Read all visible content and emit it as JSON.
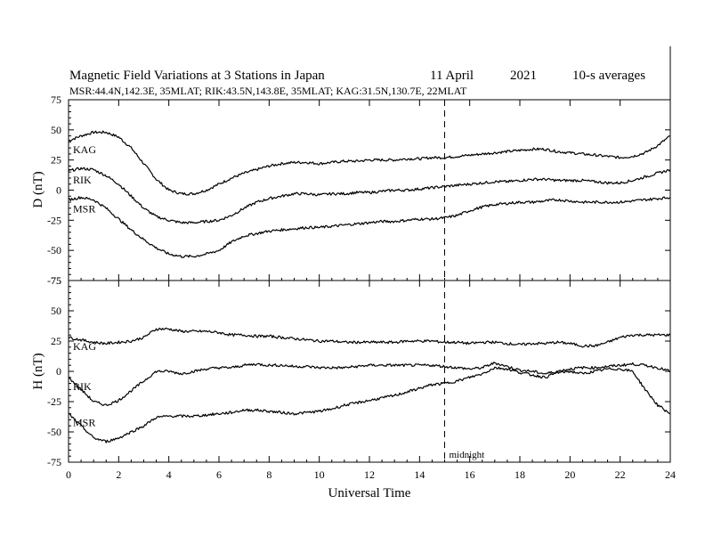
{
  "chart_data": [
    {
      "type": "line",
      "title": "Magnetic Field Variations at 3 Stations in Japan",
      "date_label": "11  April",
      "year_label": "2021",
      "avg_label": "10-s averages",
      "subtitle": "MSR:44.4N,142.3E, 35MLAT;  RIK:43.5N,143.8E, 35MLAT;  KAG:31.5N,130.7E, 22MLAT",
      "ylabel": "D (nT)",
      "xlabel": "",
      "xlim": [
        0,
        24
      ],
      "ylim": [
        -75,
        75
      ],
      "yticks": [
        -75,
        -50,
        -25,
        0,
        25,
        50,
        75
      ],
      "series": [
        {
          "name": "KAG",
          "x": [
            0,
            0.5,
            1,
            1.5,
            2,
            2.5,
            3,
            3.5,
            4,
            4.5,
            5,
            5.5,
            6,
            6.5,
            7,
            7.5,
            8,
            8.5,
            9,
            9.5,
            10,
            10.5,
            11,
            11.5,
            12,
            12.5,
            13,
            13.5,
            14,
            14.5,
            15,
            15.5,
            16,
            16.5,
            17,
            17.5,
            18,
            18.5,
            19,
            19.5,
            20,
            20.5,
            21,
            21.5,
            22,
            22.5,
            23,
            23.5,
            24
          ],
          "values": [
            41,
            45,
            48,
            48,
            44,
            35,
            22,
            9,
            0,
            -3,
            -3,
            0,
            5,
            10,
            14,
            17,
            20,
            22,
            23,
            23,
            22,
            23,
            24,
            24,
            25,
            25,
            25,
            26,
            26,
            27,
            27,
            28,
            29,
            30,
            31,
            32,
            33,
            34,
            34,
            32,
            31,
            30,
            29,
            28,
            27,
            28,
            31,
            37,
            45
          ]
        },
        {
          "name": "RIK",
          "x": [
            0,
            0.5,
            1,
            1.5,
            2,
            2.5,
            3,
            3.5,
            4,
            4.5,
            5,
            5.5,
            6,
            6.5,
            7,
            7.5,
            8,
            8.5,
            9,
            9.5,
            10,
            10.5,
            11,
            11.5,
            12,
            12.5,
            13,
            13.5,
            14,
            14.5,
            15,
            15.5,
            16,
            16.5,
            17,
            17.5,
            18,
            18.5,
            19,
            19.5,
            20,
            20.5,
            21,
            21.5,
            22,
            22.5,
            23,
            23.5,
            24
          ],
          "values": [
            16,
            18,
            17,
            12,
            5,
            -5,
            -15,
            -22,
            -25,
            -27,
            -27,
            -26,
            -25,
            -21,
            -15,
            -10,
            -7,
            -5,
            -3,
            -3,
            -4,
            -3,
            -3,
            -2,
            -2,
            -1,
            0,
            0,
            1,
            2,
            3,
            4,
            5,
            6,
            7,
            7,
            8,
            9,
            9,
            8,
            8,
            8,
            7,
            6,
            6,
            8,
            11,
            14,
            17
          ]
        },
        {
          "name": "MSR",
          "x": [
            0,
            0.5,
            1,
            1.5,
            2,
            2.5,
            3,
            3.5,
            4,
            4.5,
            5,
            5.5,
            6,
            6.5,
            7,
            7.5,
            8,
            8.5,
            9,
            9.5,
            10,
            10.5,
            11,
            11.5,
            12,
            12.5,
            13,
            13.5,
            14,
            14.5,
            15,
            15.5,
            16,
            16.5,
            17,
            17.5,
            18,
            18.5,
            19,
            19.5,
            20,
            20.5,
            21,
            21.5,
            22,
            22.5,
            23,
            23.5,
            24
          ],
          "values": [
            -8,
            -6,
            -8,
            -15,
            -24,
            -33,
            -41,
            -48,
            -53,
            -55,
            -55,
            -53,
            -50,
            -43,
            -38,
            -36,
            -34,
            -33,
            -32,
            -31,
            -31,
            -30,
            -29,
            -28,
            -27,
            -26,
            -26,
            -25,
            -24,
            -24,
            -23,
            -21,
            -17,
            -14,
            -12,
            -11,
            -10,
            -10,
            -9,
            -8,
            -9,
            -10,
            -10,
            -10,
            -10,
            -9,
            -8,
            -7,
            -6
          ]
        }
      ]
    },
    {
      "type": "line",
      "title": "",
      "ylabel": "H (nT)",
      "xlabel": "Universal Time",
      "xlim": [
        0,
        24
      ],
      "ylim": [
        -75,
        75
      ],
      "xticks": [
        0,
        2,
        4,
        6,
        8,
        10,
        12,
        14,
        16,
        18,
        20,
        22,
        24
      ],
      "yticks": [
        -75,
        -50,
        -25,
        0,
        25,
        50,
        75
      ],
      "annotation": {
        "text": "midnight",
        "x": 15
      },
      "series": [
        {
          "name": "KAG",
          "x": [
            0,
            0.5,
            1,
            1.5,
            2,
            2.5,
            3,
            3.5,
            4,
            4.5,
            5,
            5.5,
            6,
            6.5,
            7,
            7.5,
            8,
            8.5,
            9,
            9.5,
            10,
            10.5,
            11,
            11.5,
            12,
            12.5,
            13,
            13.5,
            14,
            14.5,
            15,
            15.5,
            16,
            16.5,
            17,
            17.5,
            18,
            18.5,
            19,
            19.5,
            20,
            20.5,
            21,
            21.5,
            22,
            22.5,
            23,
            23.5,
            24
          ],
          "values": [
            28,
            26,
            24,
            23,
            24,
            25,
            28,
            35,
            35,
            33,
            33,
            33,
            32,
            30,
            30,
            29,
            29,
            28,
            27,
            26,
            25,
            25,
            24,
            24,
            24,
            24,
            24,
            25,
            25,
            25,
            24,
            24,
            23,
            24,
            24,
            23,
            22,
            23,
            23,
            24,
            23,
            21,
            21,
            24,
            28,
            30,
            30,
            30,
            30
          ]
        },
        {
          "name": "RIK",
          "x": [
            0,
            0.5,
            1,
            1.5,
            2,
            2.5,
            3,
            3.5,
            4,
            4.5,
            5,
            5.5,
            6,
            6.5,
            7,
            7.5,
            8,
            8.5,
            9,
            9.5,
            10,
            10.5,
            11,
            11.5,
            12,
            12.5,
            13,
            13.5,
            14,
            14.5,
            15,
            15.5,
            16,
            16.5,
            17,
            17.5,
            18,
            18.5,
            19,
            19.5,
            20,
            20.5,
            21,
            21.5,
            22,
            22.5,
            23,
            23.5,
            24
          ],
          "values": [
            -5,
            -15,
            -25,
            -28,
            -24,
            -16,
            -8,
            0,
            0,
            -2,
            0,
            2,
            3,
            3,
            5,
            6,
            5,
            5,
            4,
            4,
            3,
            3,
            3,
            4,
            5,
            5,
            5,
            5,
            5,
            5,
            4,
            3,
            2,
            3,
            7,
            4,
            1,
            0,
            -2,
            0,
            2,
            3,
            3,
            4,
            5,
            6,
            5,
            3,
            0
          ]
        },
        {
          "name": "MSR",
          "x": [
            0,
            0.5,
            1,
            1.5,
            2,
            2.5,
            3,
            3.5,
            4,
            4.5,
            5,
            5.5,
            6,
            6.5,
            7,
            7.5,
            8,
            8.5,
            9,
            9.5,
            10,
            10.5,
            11,
            11.5,
            12,
            12.5,
            13,
            13.5,
            14,
            14.5,
            15,
            15.5,
            16,
            16.5,
            17,
            17.5,
            18,
            18.5,
            19,
            19.5,
            20,
            20.5,
            21,
            21.5,
            22,
            22.5,
            23,
            23.5,
            24
          ],
          "values": [
            -35,
            -45,
            -55,
            -58,
            -55,
            -50,
            -45,
            -38,
            -37,
            -37,
            -37,
            -36,
            -35,
            -34,
            -32,
            -32,
            -33,
            -34,
            -35,
            -34,
            -33,
            -31,
            -28,
            -26,
            -24,
            -22,
            -20,
            -17,
            -14,
            -11,
            -10,
            -8,
            -5,
            -2,
            3,
            2,
            -1,
            -3,
            -5,
            -1,
            0,
            -2,
            0,
            2,
            2,
            0,
            -15,
            -28,
            -35
          ]
        }
      ]
    }
  ]
}
